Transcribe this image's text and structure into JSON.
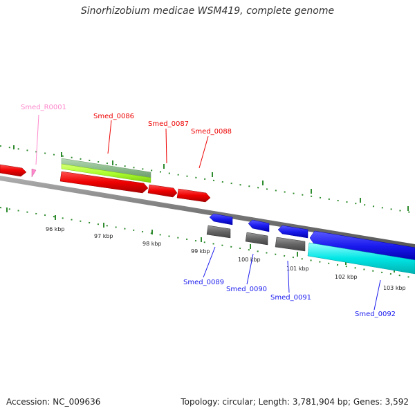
{
  "title": "Sinorhizobium medicae WSM419, complete genome",
  "footer": {
    "accession": "Accession: NC_009636",
    "summary": "Topology: circular; Length: 3,781,904 bp; Genes: 3,592"
  },
  "colors": {
    "forward_gene": "#ee0000",
    "reverse_gene": "#1a1aee",
    "rna": "#ff88cc",
    "forward_cds_a": "#8fbc8f",
    "forward_cds_b": "#adff2f",
    "reverse_cds_a": "#666666",
    "reverse_cds_b": "#00e5e5",
    "axis": "#8a8a8a",
    "ticks": "#2e8b2e"
  },
  "ticks": [
    {
      "label": "96 kbp"
    },
    {
      "label": "97 kbp"
    },
    {
      "label": "98 kbp"
    },
    {
      "label": "99 kbp"
    },
    {
      "label": "100 kbp"
    },
    {
      "label": "101 kbp"
    },
    {
      "label": "102 kbp"
    },
    {
      "label": "103 kbp"
    }
  ],
  "genes": [
    {
      "label": "Smed_R0001",
      "type": "rna"
    },
    {
      "label": "Smed_0086",
      "type": "forward"
    },
    {
      "label": "Smed_0087",
      "type": "forward"
    },
    {
      "label": "Smed_0088",
      "type": "forward"
    },
    {
      "label": "Smed_0089",
      "type": "reverse"
    },
    {
      "label": "Smed_0090",
      "type": "reverse"
    },
    {
      "label": "Smed_0091",
      "type": "reverse"
    },
    {
      "label": "Smed_0092",
      "type": "reverse"
    }
  ]
}
